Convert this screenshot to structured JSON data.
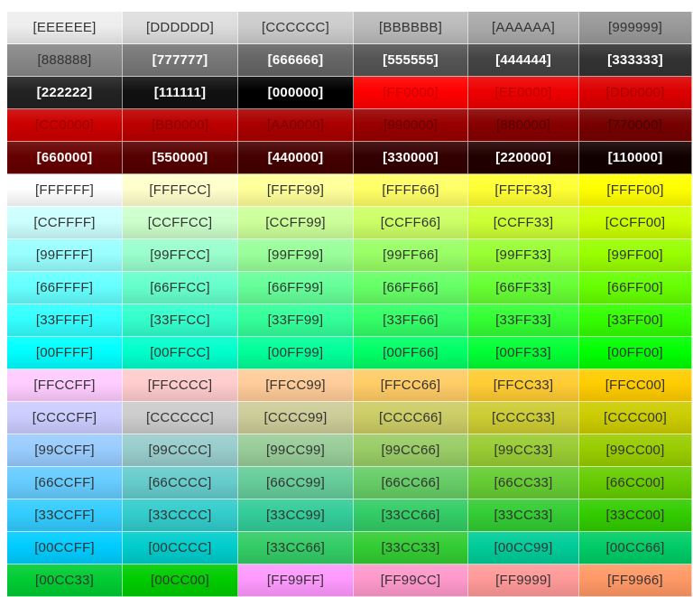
{
  "rows": [
    [
      {
        "label": "[EEEEEE]",
        "bg": "#EEEEEE",
        "fg": "#333333"
      },
      {
        "label": "[DDDDDD]",
        "bg": "#DDDDDD",
        "fg": "#333333"
      },
      {
        "label": "[CCCCCC]",
        "bg": "#CCCCCC",
        "fg": "#333333"
      },
      {
        "label": "[BBBBBB]",
        "bg": "#BBBBBB",
        "fg": "#333333"
      },
      {
        "label": "[AAAAAA]",
        "bg": "#AAAAAA",
        "fg": "#333333"
      },
      {
        "label": "[999999]",
        "bg": "#999999",
        "fg": "#333333"
      }
    ],
    [
      {
        "label": "[888888]",
        "bg": "#888888",
        "fg": "#333333"
      },
      {
        "label": "[777777]",
        "bg": "#777777",
        "fg": "#FFFFFF",
        "bold": true
      },
      {
        "label": "[666666]",
        "bg": "#666666",
        "fg": "#FFFFFF",
        "bold": true
      },
      {
        "label": "[555555]",
        "bg": "#555555",
        "fg": "#FFFFFF",
        "bold": true
      },
      {
        "label": "[444444]",
        "bg": "#444444",
        "fg": "#FFFFFF",
        "bold": true
      },
      {
        "label": "[333333]",
        "bg": "#333333",
        "fg": "#FFFFFF",
        "bold": true
      }
    ],
    [
      {
        "label": "[222222]",
        "bg": "#222222",
        "fg": "#FFFFFF",
        "bold": true
      },
      {
        "label": "[111111]",
        "bg": "#111111",
        "fg": "#FFFFFF",
        "bold": true
      },
      {
        "label": "[000000]",
        "bg": "#000000",
        "fg": "#FFFFFF",
        "bold": true
      },
      {
        "label": "[FF0000]",
        "bg": "#FF0000",
        "fg": "#CC0000"
      },
      {
        "label": "[EE0000]",
        "bg": "#EE0000",
        "fg": "#BB0000"
      },
      {
        "label": "[DD0000]",
        "bg": "#DD0000",
        "fg": "#AA0000"
      }
    ],
    [
      {
        "label": "[CC0000]",
        "bg": "#CC0000",
        "fg": "#990000"
      },
      {
        "label": "[BB0000]",
        "bg": "#BB0000",
        "fg": "#880000"
      },
      {
        "label": "[AA0000]",
        "bg": "#AA0000",
        "fg": "#770000"
      },
      {
        "label": "[990000]",
        "bg": "#990000",
        "fg": "#660000"
      },
      {
        "label": "[880000]",
        "bg": "#880000",
        "fg": "#550000"
      },
      {
        "label": "[770000]",
        "bg": "#770000",
        "fg": "#440000"
      }
    ],
    [
      {
        "label": "[660000]",
        "bg": "#660000",
        "fg": "#FFFFFF",
        "bold": true
      },
      {
        "label": "[550000]",
        "bg": "#550000",
        "fg": "#FFFFFF",
        "bold": true
      },
      {
        "label": "[440000]",
        "bg": "#440000",
        "fg": "#FFFFFF",
        "bold": true
      },
      {
        "label": "[330000]",
        "bg": "#330000",
        "fg": "#FFFFFF",
        "bold": true
      },
      {
        "label": "[220000]",
        "bg": "#220000",
        "fg": "#FFFFFF",
        "bold": true
      },
      {
        "label": "[110000]",
        "bg": "#110000",
        "fg": "#FFFFFF",
        "bold": true
      }
    ],
    [
      {
        "label": "[FFFFFF]",
        "bg": "#FFFFFF",
        "fg": "#333333"
      },
      {
        "label": "[FFFFCC]",
        "bg": "#FFFFCC",
        "fg": "#333333"
      },
      {
        "label": "[FFFF99]",
        "bg": "#FFFF99",
        "fg": "#333333"
      },
      {
        "label": "[FFFF66]",
        "bg": "#FFFF66",
        "fg": "#333333"
      },
      {
        "label": "[FFFF33]",
        "bg": "#FFFF33",
        "fg": "#333333"
      },
      {
        "label": "[FFFF00]",
        "bg": "#FFFF00",
        "fg": "#333333"
      }
    ],
    [
      {
        "label": "[CCFFFF]",
        "bg": "#CCFFFF",
        "fg": "#333333"
      },
      {
        "label": "[CCFFCC]",
        "bg": "#CCFFCC",
        "fg": "#333333"
      },
      {
        "label": "[CCFF99]",
        "bg": "#CCFF99",
        "fg": "#333333"
      },
      {
        "label": "[CCFF66]",
        "bg": "#CCFF66",
        "fg": "#333333"
      },
      {
        "label": "[CCFF33]",
        "bg": "#CCFF33",
        "fg": "#333333"
      },
      {
        "label": "[CCFF00]",
        "bg": "#CCFF00",
        "fg": "#333333"
      }
    ],
    [
      {
        "label": "[99FFFF]",
        "bg": "#99FFFF",
        "fg": "#333333"
      },
      {
        "label": "[99FFCC]",
        "bg": "#99FFCC",
        "fg": "#333333"
      },
      {
        "label": "[99FF99]",
        "bg": "#99FF99",
        "fg": "#333333"
      },
      {
        "label": "[99FF66]",
        "bg": "#99FF66",
        "fg": "#333333"
      },
      {
        "label": "[99FF33]",
        "bg": "#99FF33",
        "fg": "#333333"
      },
      {
        "label": "[99FF00]",
        "bg": "#99FF00",
        "fg": "#333333"
      }
    ],
    [
      {
        "label": "[66FFFF]",
        "bg": "#66FFFF",
        "fg": "#333333"
      },
      {
        "label": "[66FFCC]",
        "bg": "#66FFCC",
        "fg": "#333333"
      },
      {
        "label": "[66FF99]",
        "bg": "#66FF99",
        "fg": "#333333"
      },
      {
        "label": "[66FF66]",
        "bg": "#66FF66",
        "fg": "#333333"
      },
      {
        "label": "[66FF33]",
        "bg": "#66FF33",
        "fg": "#333333"
      },
      {
        "label": "[66FF00]",
        "bg": "#66FF00",
        "fg": "#333333"
      }
    ],
    [
      {
        "label": "[33FFFF]",
        "bg": "#33FFFF",
        "fg": "#333333"
      },
      {
        "label": "[33FFCC]",
        "bg": "#33FFCC",
        "fg": "#333333"
      },
      {
        "label": "[33FF99]",
        "bg": "#33FF99",
        "fg": "#333333"
      },
      {
        "label": "[33FF66]",
        "bg": "#33FF66",
        "fg": "#333333"
      },
      {
        "label": "[33FF33]",
        "bg": "#33FF33",
        "fg": "#333333"
      },
      {
        "label": "[33FF00]",
        "bg": "#33FF00",
        "fg": "#333333"
      }
    ],
    [
      {
        "label": "[00FFFF]",
        "bg": "#00FFFF",
        "fg": "#333333"
      },
      {
        "label": "[00FFCC]",
        "bg": "#00FFCC",
        "fg": "#333333"
      },
      {
        "label": "[00FF99]",
        "bg": "#00FF99",
        "fg": "#333333"
      },
      {
        "label": "[00FF66]",
        "bg": "#00FF66",
        "fg": "#333333"
      },
      {
        "label": "[00FF33]",
        "bg": "#00FF33",
        "fg": "#333333"
      },
      {
        "label": "[00FF00]",
        "bg": "#00FF00",
        "fg": "#333333"
      }
    ],
    [
      {
        "label": "[FFCCFF]",
        "bg": "#FFCCFF",
        "fg": "#333333"
      },
      {
        "label": "[FFCCCC]",
        "bg": "#FFCCCC",
        "fg": "#333333"
      },
      {
        "label": "[FFCC99]",
        "bg": "#FFCC99",
        "fg": "#333333"
      },
      {
        "label": "[FFCC66]",
        "bg": "#FFCC66",
        "fg": "#333333"
      },
      {
        "label": "[FFCC33]",
        "bg": "#FFCC33",
        "fg": "#333333"
      },
      {
        "label": "[FFCC00]",
        "bg": "#FFCC00",
        "fg": "#333333"
      }
    ],
    [
      {
        "label": "[CCCCFF]",
        "bg": "#CCCCFF",
        "fg": "#333333"
      },
      {
        "label": "[CCCCCC]",
        "bg": "#CCCCCC",
        "fg": "#333333"
      },
      {
        "label": "[CCCC99]",
        "bg": "#CCCC99",
        "fg": "#333333"
      },
      {
        "label": "[CCCC66]",
        "bg": "#CCCC66",
        "fg": "#333333"
      },
      {
        "label": "[CCCC33]",
        "bg": "#CCCC33",
        "fg": "#333333"
      },
      {
        "label": "[CCCC00]",
        "bg": "#CCCC00",
        "fg": "#333333"
      }
    ],
    [
      {
        "label": "[99CCFF]",
        "bg": "#99CCFF",
        "fg": "#333333"
      },
      {
        "label": "[99CCCC]",
        "bg": "#99CCCC",
        "fg": "#333333"
      },
      {
        "label": "[99CC99]",
        "bg": "#99CC99",
        "fg": "#333333"
      },
      {
        "label": "[99CC66]",
        "bg": "#99CC66",
        "fg": "#333333"
      },
      {
        "label": "[99CC33]",
        "bg": "#99CC33",
        "fg": "#333333"
      },
      {
        "label": "[99CC00]",
        "bg": "#99CC00",
        "fg": "#333333"
      }
    ],
    [
      {
        "label": "[66CCFF]",
        "bg": "#66CCFF",
        "fg": "#333333"
      },
      {
        "label": "[66CCCC]",
        "bg": "#66CCCC",
        "fg": "#333333"
      },
      {
        "label": "[66CC99]",
        "bg": "#66CC99",
        "fg": "#333333"
      },
      {
        "label": "[66CC66]",
        "bg": "#66CC66",
        "fg": "#333333"
      },
      {
        "label": "[66CC33]",
        "bg": "#66CC33",
        "fg": "#333333"
      },
      {
        "label": "[66CC00]",
        "bg": "#66CC00",
        "fg": "#333333"
      }
    ],
    [
      {
        "label": "[33CCFF]",
        "bg": "#33CCFF",
        "fg": "#333333"
      },
      {
        "label": "[33CCCC]",
        "bg": "#33CCCC",
        "fg": "#333333"
      },
      {
        "label": "[33CC99]",
        "bg": "#33CC99",
        "fg": "#333333"
      },
      {
        "label": "[33CC66]",
        "bg": "#33CC66",
        "fg": "#333333"
      },
      {
        "label": "[33CC33]",
        "bg": "#33CC33",
        "fg": "#333333"
      },
      {
        "label": "[33CC00]",
        "bg": "#33CC00",
        "fg": "#333333"
      }
    ],
    [
      {
        "label": "[00CCFF]",
        "bg": "#00CCFF",
        "fg": "#333333"
      },
      {
        "label": "[00CCCC]",
        "bg": "#00CCCC",
        "fg": "#333333"
      },
      {
        "label": "[33CC66]",
        "bg": "#33CC66",
        "fg": "#333333"
      },
      {
        "label": "[33CC33]",
        "bg": "#33CC33",
        "fg": "#333333"
      },
      {
        "label": "[00CC99]",
        "bg": "#00CC99",
        "fg": "#333333"
      },
      {
        "label": "[00CC66]",
        "bg": "#00CC66",
        "fg": "#333333"
      }
    ],
    [
      {
        "label": "[00CC33]",
        "bg": "#00CC33",
        "fg": "#333333"
      },
      {
        "label": "[00CC00]",
        "bg": "#00CC00",
        "fg": "#333333"
      },
      {
        "label": "[FF99FF]",
        "bg": "#FF99FF",
        "fg": "#333333"
      },
      {
        "label": "[FF99CC]",
        "bg": "#FF99CC",
        "fg": "#333333"
      },
      {
        "label": "[FF9999]",
        "bg": "#FF9999",
        "fg": "#333333"
      },
      {
        "label": "[FF9966]",
        "bg": "#FF9966",
        "fg": "#333333"
      }
    ]
  ]
}
